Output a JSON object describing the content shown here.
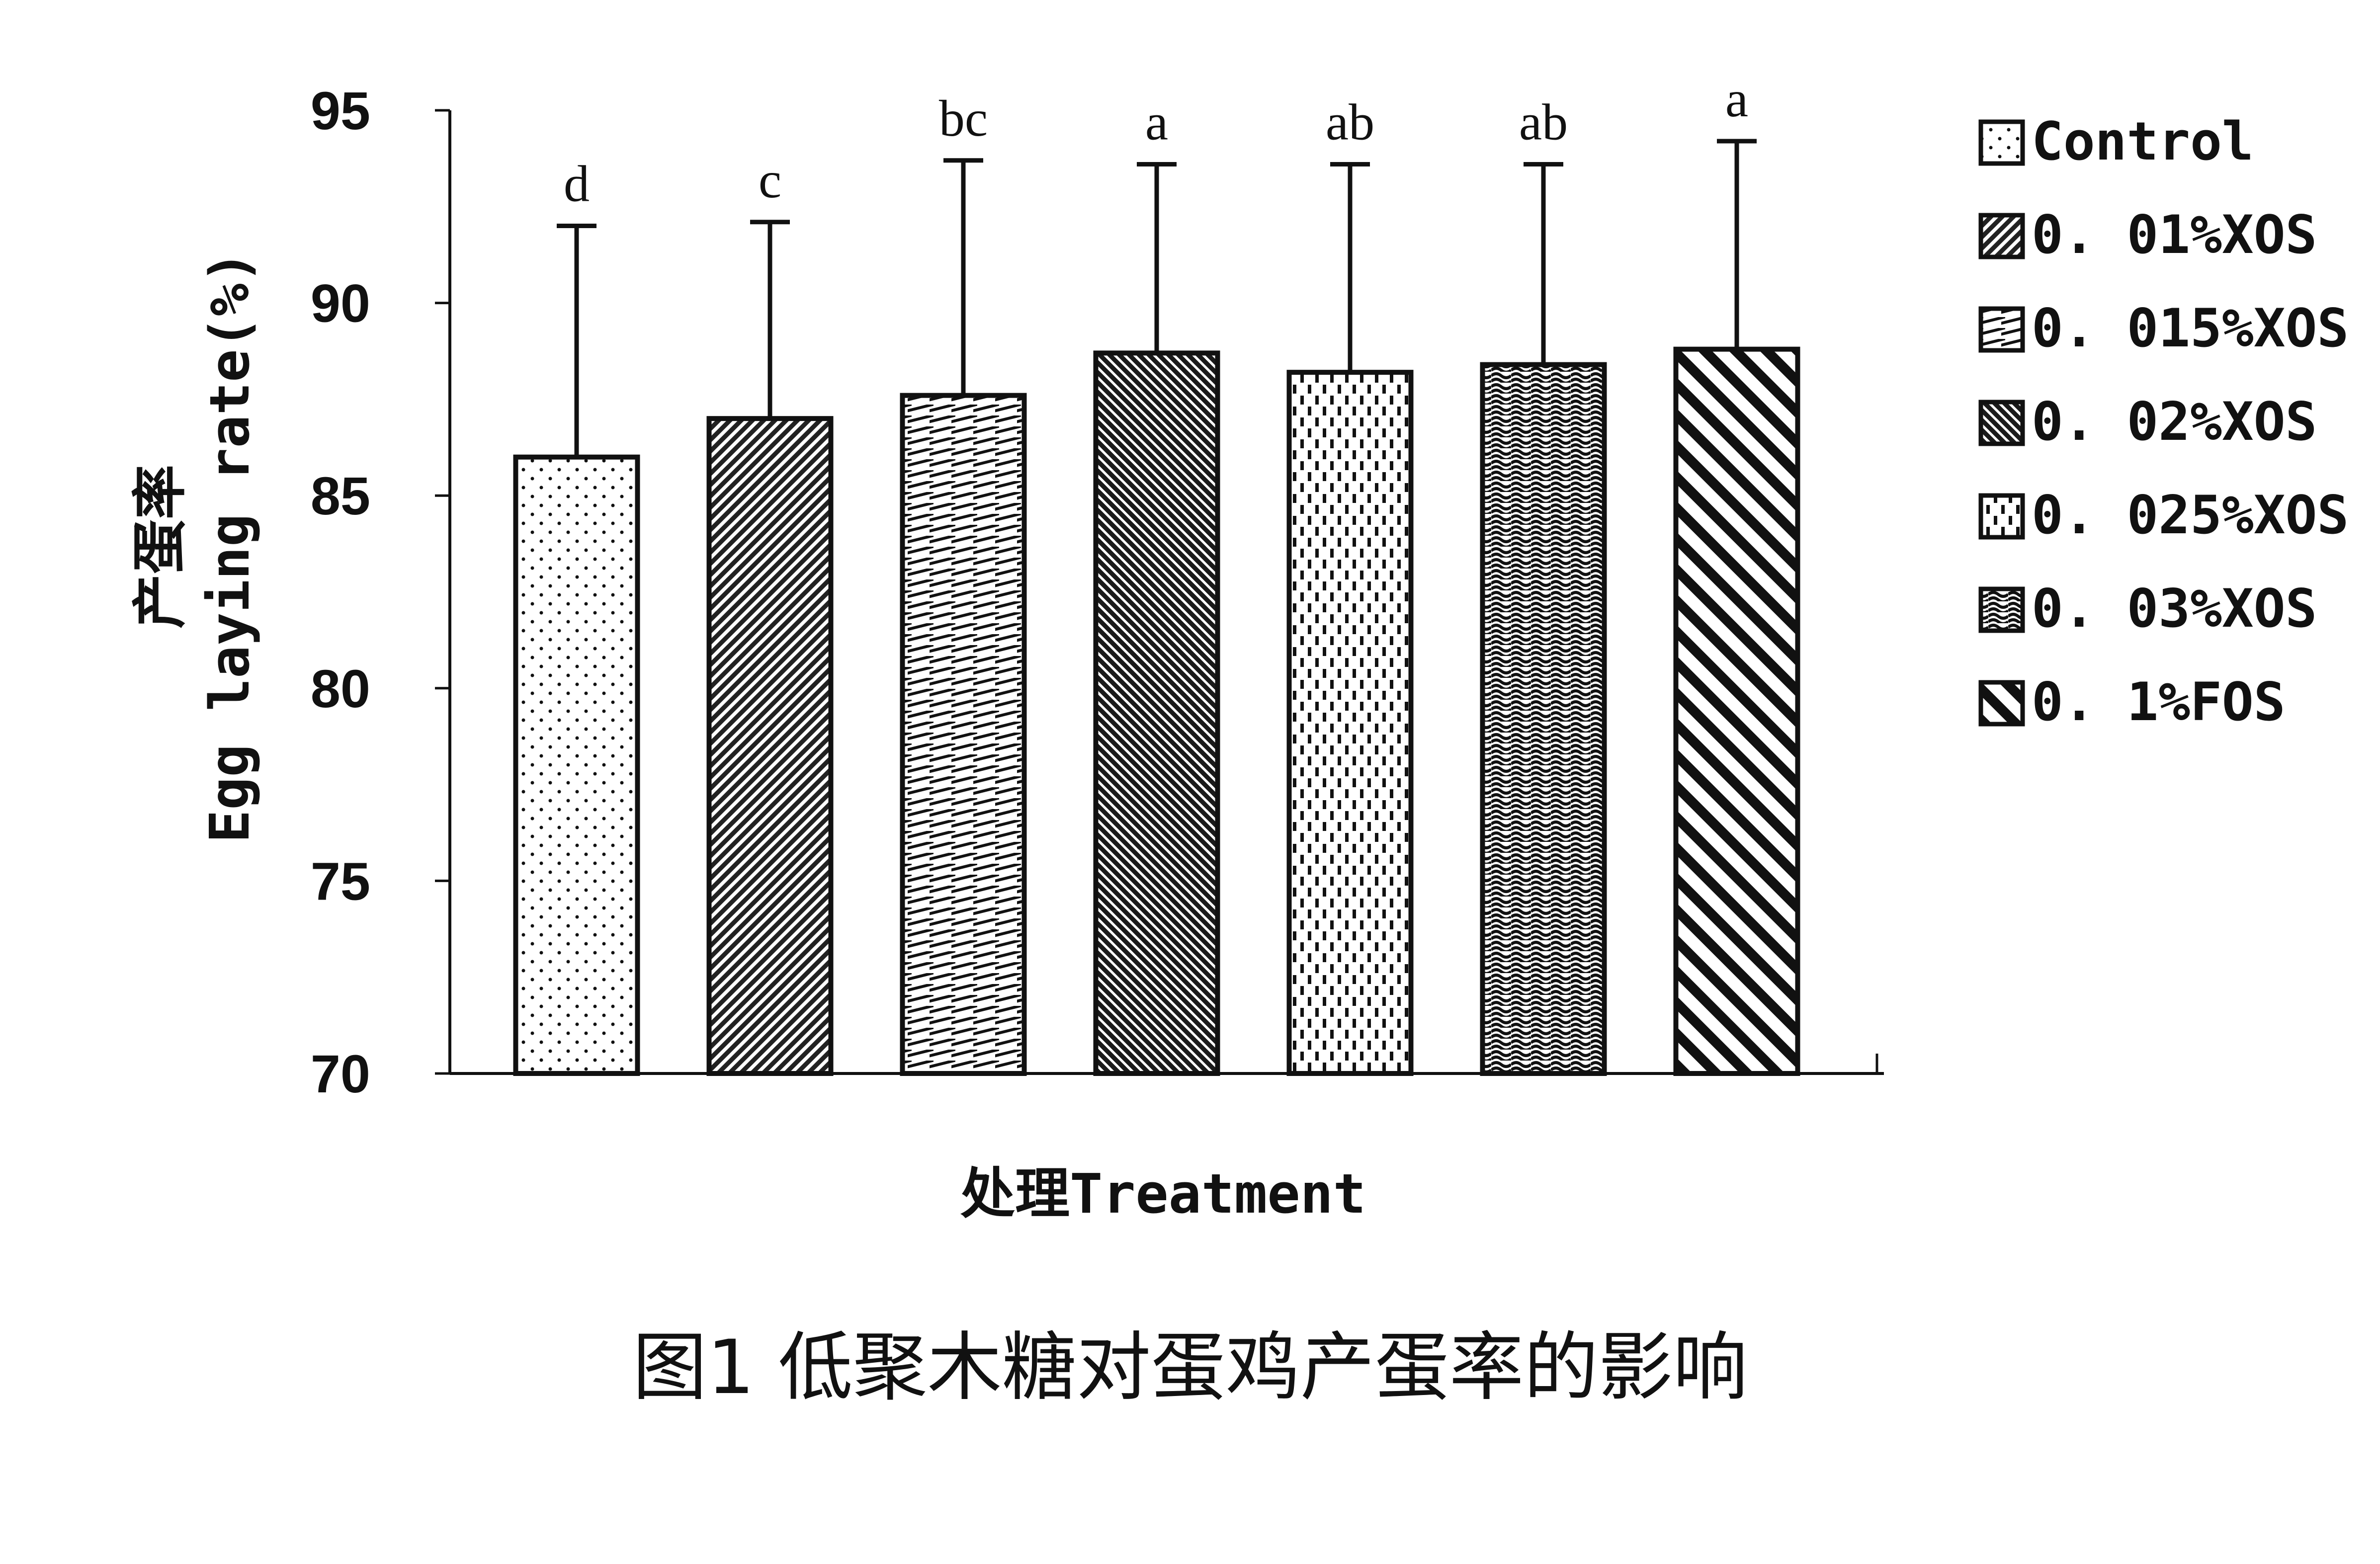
{
  "chart_data": {
    "type": "bar",
    "categories": [
      "Control",
      "0.01%XOS",
      "0.015%XOS",
      "0.02%XOS",
      "0.025%XOS",
      "0.03%XOS",
      "0.1%FOS"
    ],
    "values": [
      86.0,
      87.0,
      87.6,
      88.7,
      88.2,
      88.4,
      88.8
    ],
    "error_upper": [
      92.0,
      92.1,
      93.7,
      93.6,
      93.6,
      93.6,
      94.2
    ],
    "significance_letters": [
      "d",
      "c",
      "bc",
      "a",
      "ab",
      "ab",
      "a"
    ],
    "ylabel_cn": "产蛋率",
    "ylabel_en": "Egg laying rate(%)",
    "xlabel": "处理Treatment",
    "ylim": [
      70,
      95
    ],
    "yticks": [
      95,
      90,
      85,
      80,
      75,
      70
    ],
    "legend": [
      "Control",
      "0. 01%XOS",
      "0. 015%XOS",
      "0. 02%XOS",
      "0. 025%XOS",
      "0. 03%XOS",
      "0. 1%FOS"
    ],
    "legend_position": "right",
    "grid": false,
    "bar_patterns": [
      "dots",
      "fine-diagonal",
      "horizontal-dashes",
      "dense-diagonal",
      "vertical-dashes",
      "waves",
      "wide-diagonal"
    ],
    "colors": {
      "ink": "#111111",
      "background": "#ffffff"
    }
  },
  "caption": "图1 低聚木糖对蛋鸡产蛋率的影响"
}
